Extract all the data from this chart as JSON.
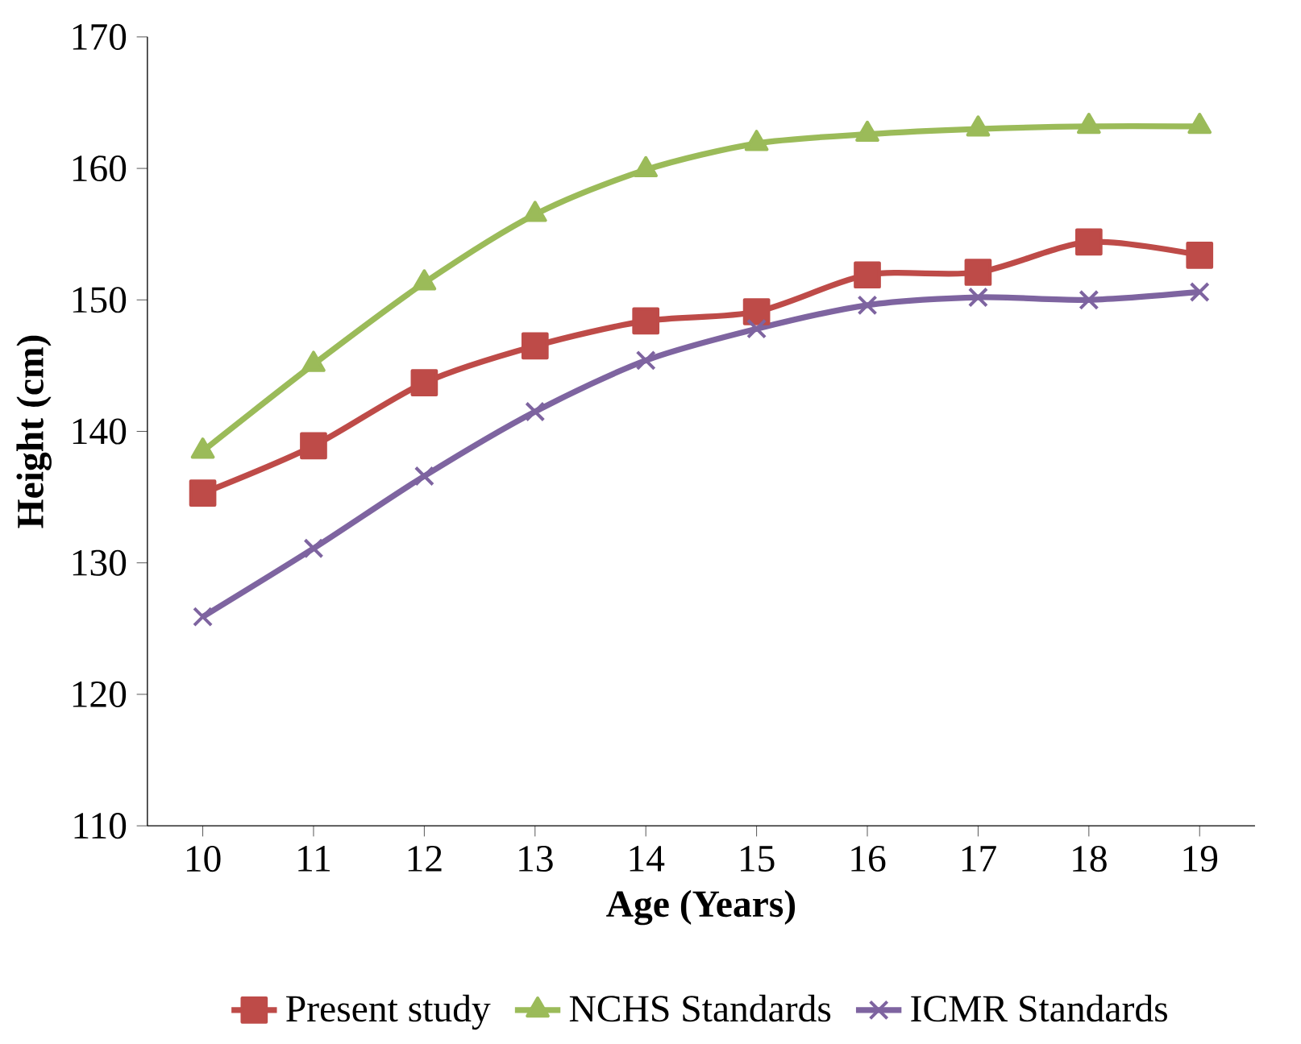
{
  "chart_data": {
    "type": "line",
    "xlabel": "Age (Years)",
    "ylabel": "Height (cm)",
    "categories": [
      "10",
      "11",
      "12",
      "13",
      "14",
      "15",
      "16",
      "17",
      "18",
      "19"
    ],
    "ylim": [
      110,
      170
    ],
    "yticks": [
      110,
      120,
      130,
      140,
      150,
      160,
      170
    ],
    "legend": "bottom",
    "grid": false,
    "series": [
      {
        "name": "Present study",
        "color": "#be4b48",
        "marker": "square",
        "values": [
          135.3,
          138.9,
          143.7,
          146.5,
          148.4,
          149.1,
          151.9,
          152.1,
          154.4,
          153.4
        ]
      },
      {
        "name": "NCHS Standards",
        "color": "#9bbb59",
        "marker": "triangle",
        "values": [
          138.5,
          145.1,
          151.3,
          156.5,
          159.9,
          161.9,
          162.6,
          163.0,
          163.2,
          163.2
        ]
      },
      {
        "name": "ICMR Standards",
        "color": "#7e64a0",
        "marker": "cross",
        "values": [
          125.9,
          131.1,
          136.6,
          141.5,
          145.4,
          147.8,
          149.6,
          150.2,
          150.0,
          150.6
        ]
      }
    ]
  }
}
